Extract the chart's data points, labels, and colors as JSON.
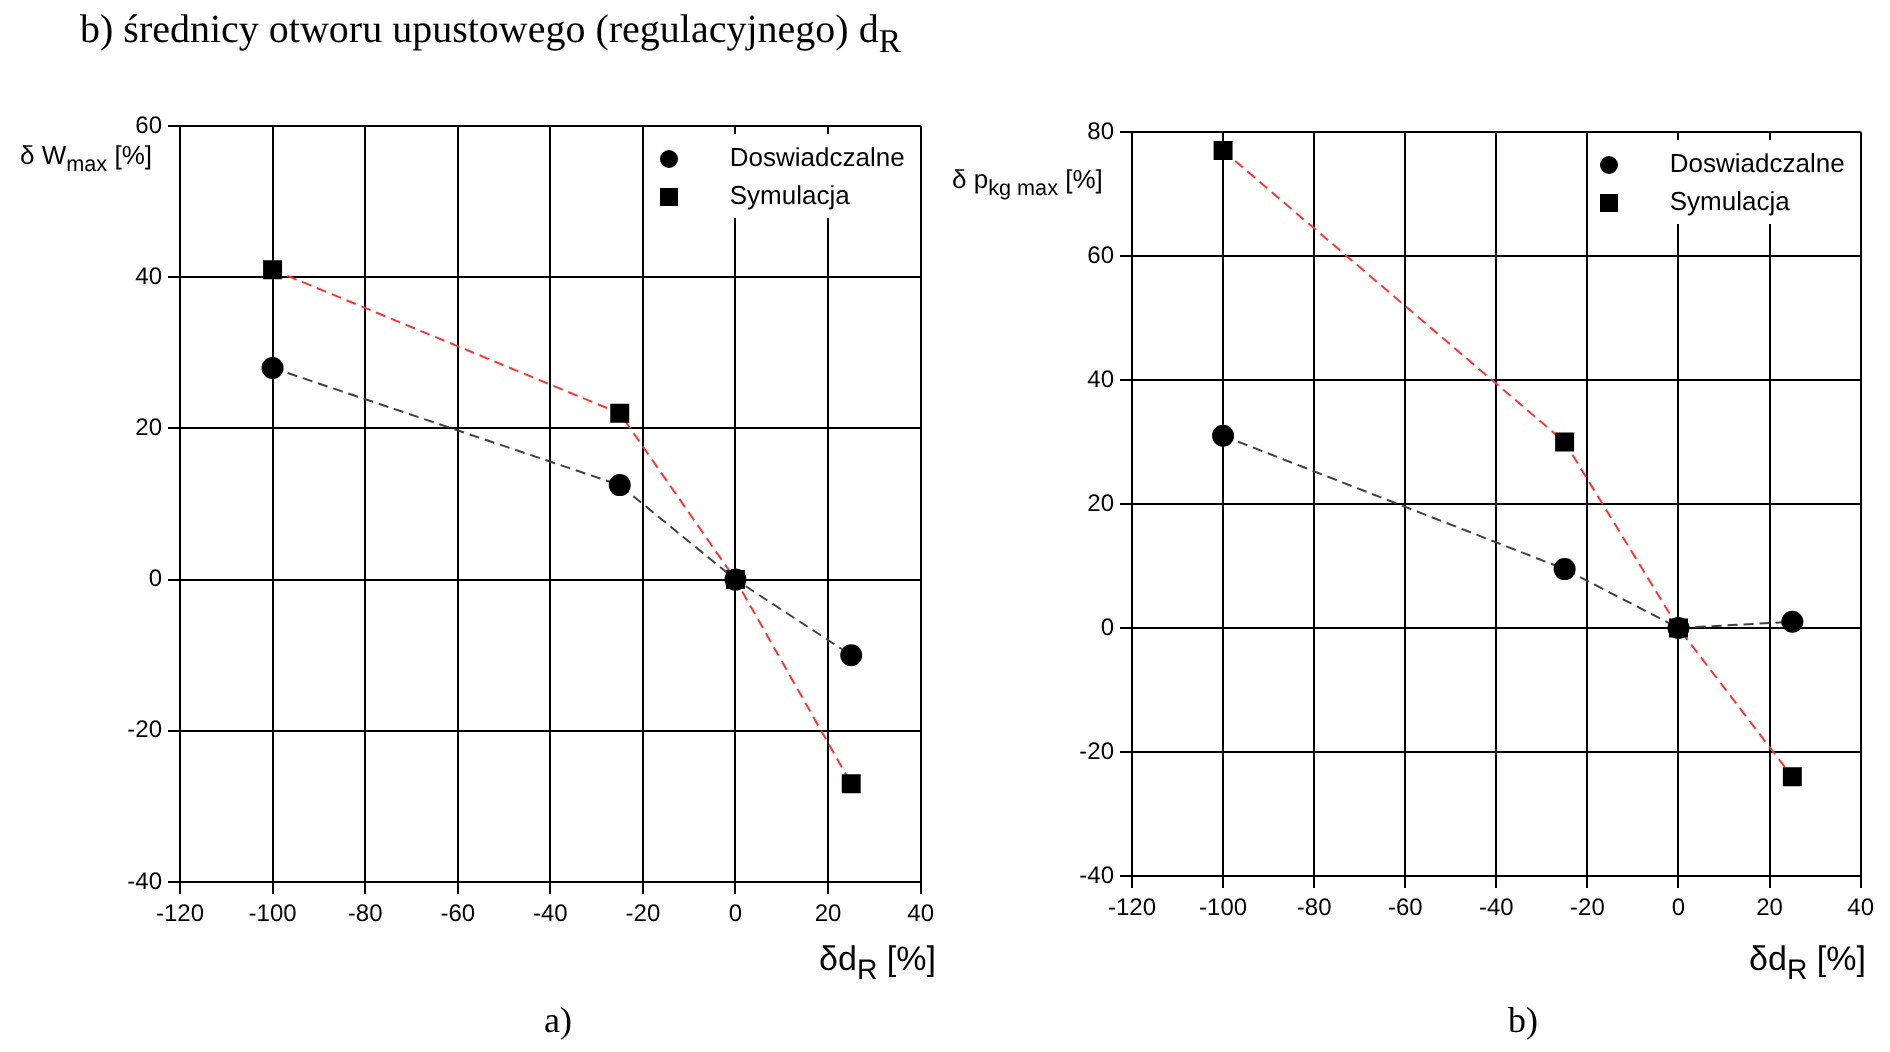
{
  "chart_data": [
    {
      "type": "line",
      "title": "b)   średnicy otworu upustowego (regulacyjnego) d$_{R}$",
      "xlabel": "δd$_{R}$ [%]",
      "ylabel": "δ W$_{max}$ [%]",
      "annotations": [
        "a)"
      ],
      "x": [
        -100,
        -25,
        0,
        25
      ],
      "series": [
        {
          "name": "Doswiadczalne",
          "color": "#404040",
          "marker": "circle",
          "values": [
            28,
            12.5,
            0,
            -10
          ]
        },
        {
          "name": "Symulacja",
          "color": "#ff3333",
          "marker": "square",
          "values": [
            41,
            22,
            0,
            -27
          ]
        }
      ],
      "xlim": [
        -120,
        40
      ],
      "xticks": [
        -120,
        -100,
        -80,
        -60,
        -40,
        -20,
        0,
        20,
        40
      ],
      "ylim": [
        -40,
        60
      ],
      "yticks": [
        -40,
        -20,
        0,
        20,
        40,
        60
      ],
      "grid": true,
      "legend": "top right",
      "line_style": "dashed"
    },
    {
      "type": "line",
      "xlabel": "δd$_{R}$ [%]",
      "ylabel": "δ p$_{kg max}$ [%]",
      "annotations": [
        "b)"
      ],
      "x": [
        -100,
        -25,
        0,
        25
      ],
      "series": [
        {
          "name": "Doswiadczalne",
          "color": "#404040",
          "marker": "circle",
          "values": [
            31,
            9.5,
            0,
            1
          ]
        },
        {
          "name": "Symulacja",
          "color": "#ff3333",
          "marker": "square",
          "values": [
            77,
            30,
            0,
            -24
          ]
        }
      ],
      "xlim": [
        -120,
        40
      ],
      "xticks": [
        -120,
        -100,
        -80,
        -60,
        -40,
        -20,
        0,
        20,
        40
      ],
      "ylim": [
        -40,
        80
      ],
      "yticks": [
        -40,
        -20,
        0,
        20,
        40,
        60,
        80
      ],
      "grid": true,
      "legend": "top right",
      "line_style": "dashed"
    }
  ]
}
